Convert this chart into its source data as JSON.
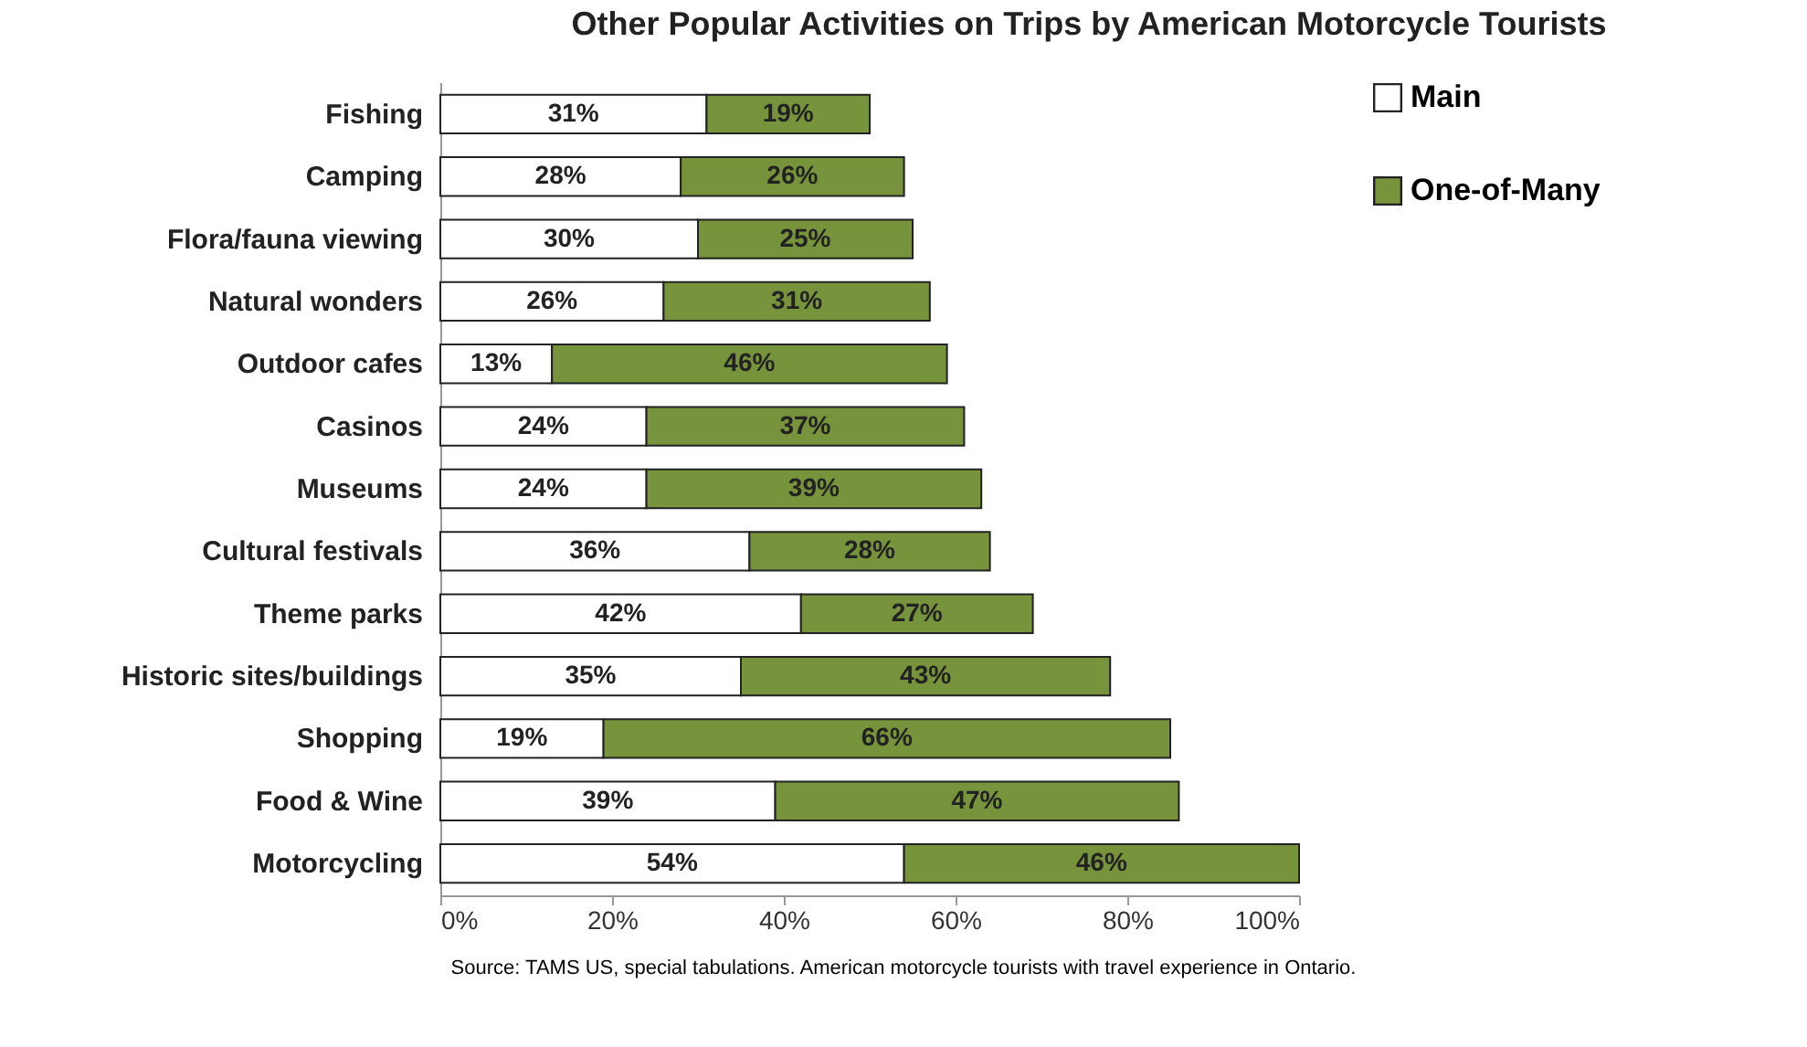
{
  "chart_data": {
    "type": "bar",
    "orientation": "horizontal",
    "stacked": true,
    "title": "Other Popular Activities on Trips by American Motorcycle Tourists",
    "categories": [
      "Fishing",
      "Camping",
      "Flora/fauna viewing",
      "Natural wonders",
      "Outdoor cafes",
      "Casinos",
      "Museums",
      "Cultural festivals",
      "Theme parks",
      "Historic sites/buildings",
      "Shopping",
      "Food & Wine",
      "Motorcycling"
    ],
    "series": [
      {
        "name": "Main",
        "color": "#ffffff",
        "values": [
          31,
          28,
          30,
          26,
          13,
          24,
          24,
          36,
          42,
          35,
          19,
          39,
          54
        ],
        "value_labels": [
          "31%",
          "28%",
          "30%",
          "26%",
          "13%",
          "24%",
          "24%",
          "36%",
          "42%",
          "35%",
          "19%",
          "39%",
          "54%"
        ]
      },
      {
        "name": "One-of-Many",
        "color": "#77933c",
        "values": [
          19,
          26,
          25,
          31,
          46,
          37,
          39,
          28,
          27,
          43,
          66,
          47,
          46
        ],
        "value_labels": [
          "19%",
          "26%",
          "25%",
          "31%",
          "46%",
          "37%",
          "39%",
          "28%",
          "27%",
          "43%",
          "66%",
          "47%",
          "46%"
        ]
      }
    ],
    "xlim": [
      0,
      100
    ],
    "xticks": [
      {
        "value": 0,
        "label": "0%"
      },
      {
        "value": 20,
        "label": "20%"
      },
      {
        "value": 40,
        "label": "40%"
      },
      {
        "value": 60,
        "label": "60%"
      },
      {
        "value": 80,
        "label": "80%"
      },
      {
        "value": 100,
        "label": "100%"
      }
    ],
    "legend": "right",
    "annotations": [
      "Source:  TAMS US, special tabulations.  American motorcycle tourists with travel experience in Ontario."
    ]
  }
}
